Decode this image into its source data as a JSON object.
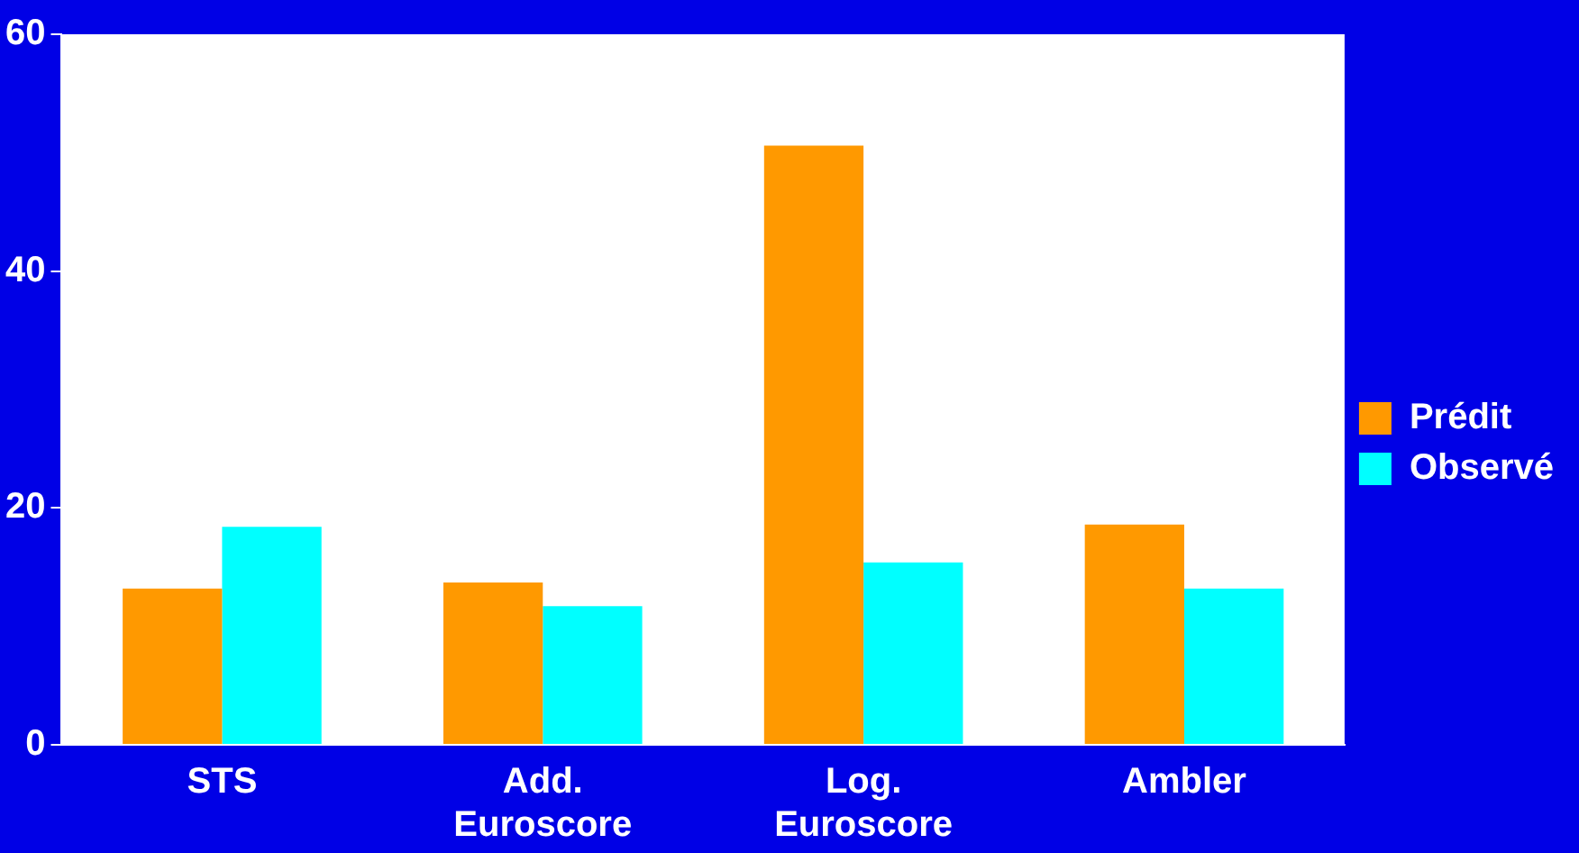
{
  "chart_data": {
    "type": "bar",
    "categories": [
      "STS",
      "Add. Euroscore",
      "Log. Euroscore",
      "Ambler"
    ],
    "series": [
      {
        "name": "Prédit",
        "color": "#ff9900",
        "values": [
          13.2,
          13.7,
          50.6,
          18.6
        ]
      },
      {
        "name": "Observé",
        "color": "#00ffff",
        "values": [
          18.4,
          11.7,
          15.4,
          13.2
        ]
      }
    ],
    "ylim": [
      0,
      60
    ],
    "yticks": [
      0,
      20,
      40,
      60
    ],
    "grid": false,
    "legend": "right"
  }
}
